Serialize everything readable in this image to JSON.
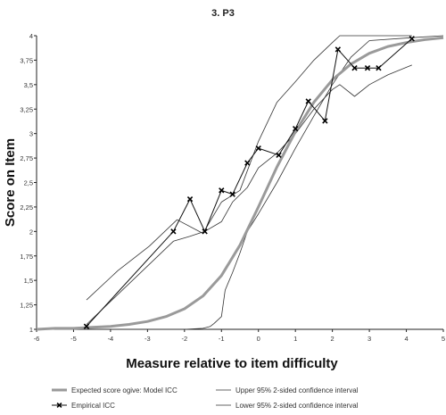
{
  "chart_data": {
    "type": "line",
    "title": "3. P3",
    "xlabel": "Measure relative to item difficulty",
    "ylabel": "Score on Item",
    "xlim": [
      -6,
      5
    ],
    "ylim": [
      1,
      4
    ],
    "x_ticks": [
      "-6",
      "-5",
      "-4",
      "-3",
      "-2",
      "-1",
      "0",
      "1",
      "2",
      "3",
      "4",
      "5"
    ],
    "y_ticks": [
      "1",
      "1,25",
      "1,5",
      "1,75",
      "2",
      "2,25",
      "2,5",
      "2,75",
      "3",
      "3,25",
      "3,5",
      "3,75",
      "4"
    ],
    "grid": false,
    "legend": [
      {
        "label": "Expected score ogive: Model ICC",
        "style": "thick-gray-line"
      },
      {
        "label": "Upper 95% 2-sided confidence interval",
        "style": "thin-line"
      },
      {
        "label": "Empirical ICC",
        "style": "x-marker-line"
      },
      {
        "label": "Lower 95% 2-sided confidence interval",
        "style": "thin-line"
      }
    ],
    "series": [
      {
        "name": "Expected score ogive: Model ICC",
        "style": "thick-gray-line",
        "color": "#9a9a9a",
        "x": [
          -6,
          -5.5,
          -5,
          -4.5,
          -4,
          -3.5,
          -3,
          -2.5,
          -2,
          -1.5,
          -1,
          -0.5,
          0,
          0.5,
          1,
          1.5,
          2,
          2.5,
          3,
          3.5,
          4,
          4.5,
          5
        ],
        "y": [
          1.0,
          1.01,
          1.01,
          1.02,
          1.03,
          1.05,
          1.08,
          1.13,
          1.21,
          1.34,
          1.55,
          1.86,
          2.25,
          2.66,
          3.02,
          3.32,
          3.55,
          3.71,
          3.82,
          3.89,
          3.93,
          3.96,
          3.98
        ]
      },
      {
        "name": "Empirical ICC",
        "style": "x-marker-line",
        "color": "#111111",
        "x": [
          -4.65,
          -2.3,
          -1.85,
          -1.45,
          -1.0,
          -0.7,
          -0.3,
          0.0,
          0.55,
          1.0,
          1.35,
          1.8,
          2.15,
          2.6,
          2.95,
          3.25,
          4.15
        ],
        "y": [
          1.03,
          2.0,
          2.33,
          2.0,
          2.42,
          2.38,
          2.7,
          2.85,
          2.78,
          3.05,
          3.33,
          3.13,
          3.86,
          3.67,
          3.67,
          3.67,
          3.97
        ]
      },
      {
        "name": "Upper 95% 2-sided confidence interval",
        "style": "thin-line",
        "color": "#333333",
        "x": [
          -4.65,
          -3.8,
          -2.95,
          -2.2,
          -1.5,
          -1.0,
          -0.5,
          0.0,
          0.5,
          1.0,
          1.5,
          2.0,
          2.2,
          2.8,
          3.5,
          4.15
        ],
        "y": [
          1.3,
          1.6,
          1.85,
          2.12,
          1.98,
          2.3,
          2.42,
          2.92,
          3.32,
          3.53,
          3.75,
          3.93,
          4.0,
          4.0,
          4.0,
          4.0
        ]
      },
      {
        "name": "Lower 95% 2-sided confidence interval",
        "style": "thin-line",
        "color": "#333333",
        "x": [
          -4.65,
          -2.3,
          -1.85,
          -1.45,
          -1.0,
          -0.7,
          -0.3,
          0.0,
          0.5,
          1.0,
          1.5,
          2.0,
          2.2,
          2.6,
          3.0,
          3.5,
          4.15
        ],
        "y": [
          1.05,
          1.9,
          1.95,
          2.0,
          2.1,
          2.3,
          2.45,
          2.65,
          2.8,
          3.0,
          3.25,
          3.45,
          3.5,
          3.38,
          3.5,
          3.6,
          3.7
        ]
      },
      {
        "name": "Lower 95% 2-sided confidence interval",
        "style": "thin-line",
        "color": "#333333",
        "x": [
          -6,
          -3,
          -2,
          -1.5,
          -1.3,
          -1.2,
          -1.0,
          -0.9,
          -0.7,
          -0.5,
          -0.3,
          0.0,
          0.5,
          1.0,
          1.5,
          2.0,
          2.5,
          3.0,
          4.15,
          5.0
        ],
        "y": [
          1.0,
          1.0,
          1.0,
          1.01,
          1.03,
          1.06,
          1.13,
          1.4,
          1.58,
          1.78,
          2.0,
          2.18,
          2.5,
          2.85,
          3.18,
          3.5,
          3.78,
          3.95,
          3.98,
          4.0
        ]
      }
    ]
  }
}
